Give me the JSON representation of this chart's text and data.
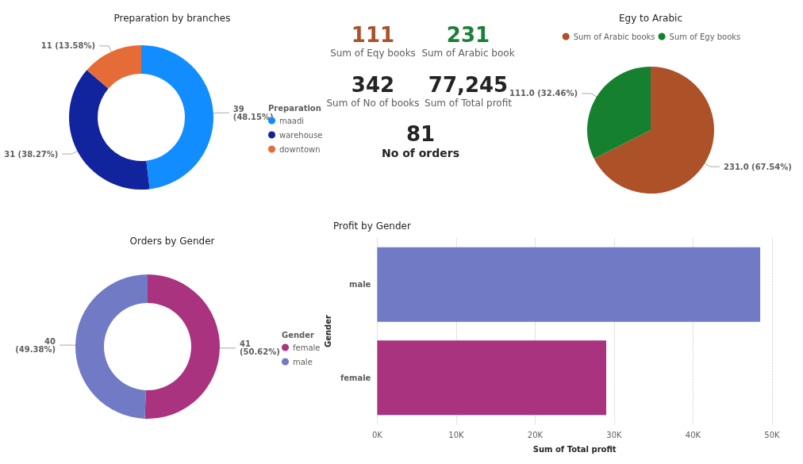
{
  "chart_data": [
    {
      "type": "donut",
      "title": "Preparation by branches",
      "legend_title": "Preparation",
      "legend": "right",
      "categories": [
        "maadi",
        "warehouse",
        "downtown"
      ],
      "values": [
        39,
        31,
        11
      ],
      "colors": [
        "#118dff",
        "#12239e",
        "#e66c37"
      ],
      "value_labels": [
        "39\n(48.15%)",
        "31 (38.27%)",
        "11 (13.58%)"
      ]
    },
    {
      "type": "other",
      "categories": [
        "Sum of Eqy books",
        "Sum of Arabic book",
        "Sum of No of books",
        "Sum of Total profit",
        "No of orders"
      ],
      "values": [
        111,
        231,
        342,
        77245,
        81
      ],
      "value_labels": [
        "111",
        "231",
        "342",
        "77,245",
        "81"
      ],
      "colors": [
        "#a9532a",
        "#1a7f37",
        "#252423",
        "#252423",
        "#252423"
      ]
    },
    {
      "type": "pie",
      "title": "Egy to Arabic",
      "legend": "top",
      "categories": [
        "Sum of Arabic books",
        "Sum of Egy books"
      ],
      "values": [
        231,
        111
      ],
      "colors": [
        "#ad5129",
        "#15812f"
      ],
      "value_labels": [
        "231.0 (67.54%)",
        "111.0 (32.46%)"
      ]
    },
    {
      "type": "donut",
      "title": "Orders by Gender",
      "legend_title": "Gender",
      "legend": "right",
      "categories": [
        "female",
        "male"
      ],
      "values": [
        41,
        40
      ],
      "colors": [
        "#aa337f",
        "#717bc5"
      ],
      "value_labels": [
        "41\n(50.62%)",
        "40\n(49.38%)"
      ]
    },
    {
      "type": "bar",
      "orientation": "horizontal",
      "title": "Profit by Gender",
      "xlabel": "Sum of Total profit",
      "ylabel": "Gender",
      "categories": [
        "male",
        "female"
      ],
      "values": [
        48500,
        29000
      ],
      "colors": [
        "#717bc5",
        "#aa337f"
      ],
      "xlim": [
        0,
        50000
      ],
      "xticks": [
        {
          "value": 0,
          "label": "0K"
        },
        {
          "value": 10000,
          "label": "10K"
        },
        {
          "value": 20000,
          "label": "20K"
        },
        {
          "value": 30000,
          "label": "30K"
        },
        {
          "value": 40000,
          "label": "40K"
        },
        {
          "value": 50000,
          "label": "50K"
        }
      ],
      "grid": "x",
      "legend": false
    }
  ]
}
